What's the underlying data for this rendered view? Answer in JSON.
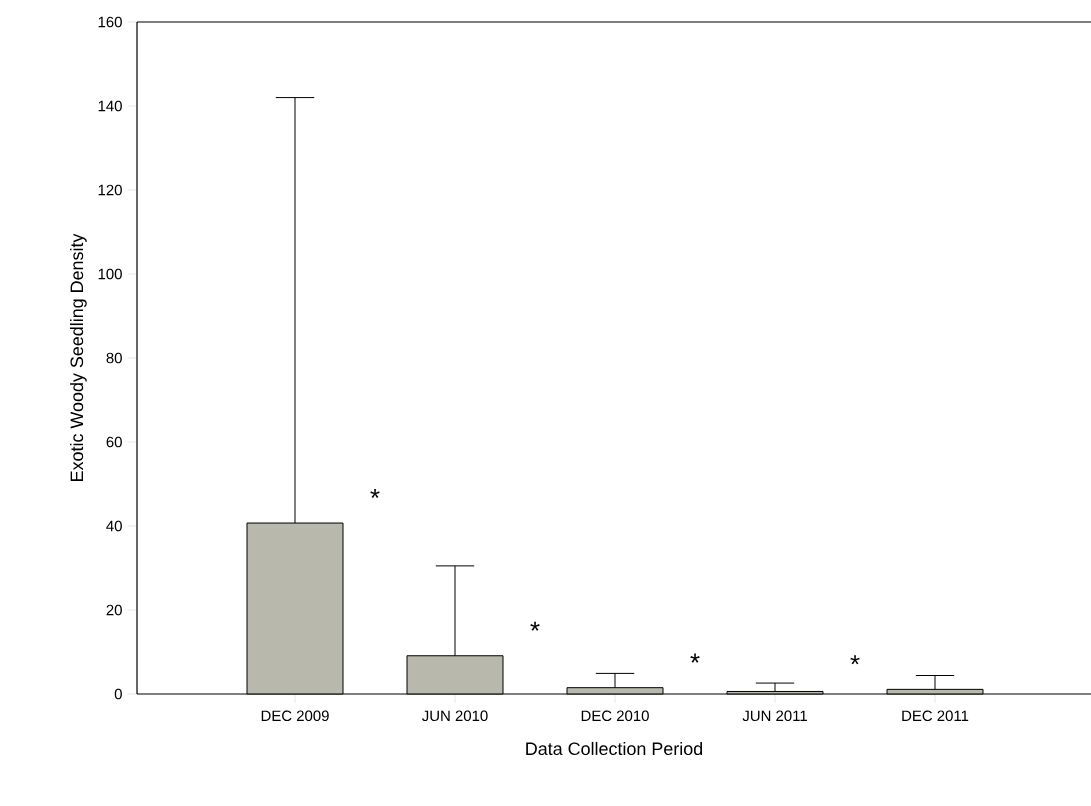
{
  "chart_data": {
    "type": "bar",
    "xlabel": "Data Collection Period",
    "ylabel": "Exotic Woody Seedling Density",
    "categories": [
      "DEC 2009",
      "JUN 2010",
      "DEC 2010",
      "JUN 2011",
      "DEC 2011"
    ],
    "values": [
      40.7,
      9.1,
      1.5,
      0.6,
      1.1
    ],
    "errors": [
      [
        40.7,
        142
      ],
      [
        9.1,
        30.5
      ],
      [
        1.5,
        4.9
      ],
      [
        0.6,
        2.6
      ],
      [
        1.1,
        4.4
      ]
    ],
    "color": "#b8b8ac",
    "ylim": [
      0,
      160
    ],
    "yticks": [
      0,
      20,
      40,
      60,
      80,
      100,
      120,
      140,
      160
    ],
    "annotations": [
      "*",
      "*",
      "*",
      "*"
    ],
    "grid": false
  }
}
